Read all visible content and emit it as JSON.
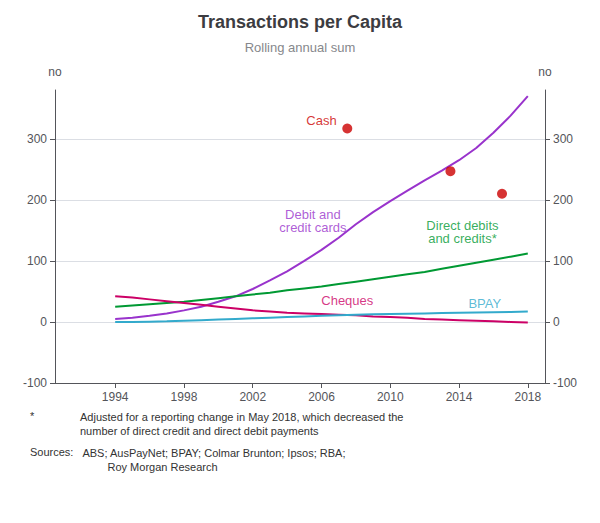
{
  "chart_data": {
    "type": "line",
    "title": "Transactions per Capita",
    "subtitle": "Rolling annual sum",
    "ylabel": "no",
    "y2label": "no",
    "xlim": [
      1990.5,
      2019.0
    ],
    "xticks": [
      1994,
      1998,
      2002,
      2006,
      2010,
      2014,
      2018
    ],
    "ylim": [
      -100,
      380
    ],
    "yticks": [
      -100,
      0,
      100,
      200,
      300
    ],
    "y2lim": [
      -100,
      380
    ],
    "y2ticks": [
      -100,
      0,
      100,
      200,
      300
    ],
    "grid": true,
    "series": [
      {
        "name": "Debit and\ncredit cards",
        "type": "line",
        "color": "#9933CC",
        "x": [
          1994,
          1995,
          1996,
          1997,
          1998,
          1999,
          2000,
          2001,
          2002,
          2003,
          2004,
          2005,
          2006,
          2007,
          2008,
          2009,
          2010,
          2011,
          2012,
          2013,
          2014,
          2015,
          2016,
          2017,
          2018
        ],
        "values": [
          5,
          7,
          10,
          14,
          19,
          25,
          33,
          42,
          54,
          68,
          83,
          100,
          118,
          138,
          160,
          180,
          198,
          215,
          232,
          248,
          265,
          285,
          310,
          338,
          370
        ]
      },
      {
        "name": "Direct debits\nand credits*",
        "type": "line",
        "color": "#009933",
        "x": [
          1994,
          1995,
          1996,
          1997,
          1998,
          1999,
          2000,
          2001,
          2002,
          2003,
          2004,
          2005,
          2006,
          2007,
          2008,
          2009,
          2010,
          2011,
          2012,
          2013,
          2014,
          2015,
          2016,
          2017,
          2018
        ],
        "values": [
          25,
          27,
          29,
          31,
          33,
          36,
          39,
          42,
          45,
          48,
          52,
          55,
          58,
          62,
          66,
          70,
          74,
          78,
          82,
          87,
          92,
          97,
          102,
          107,
          112
        ]
      },
      {
        "name": "Cheques",
        "type": "line",
        "color": "#CC0066",
        "x": [
          1994,
          1995,
          1996,
          1997,
          1998,
          1999,
          2000,
          2001,
          2002,
          2003,
          2004,
          2005,
          2006,
          2007,
          2008,
          2009,
          2010,
          2011,
          2012,
          2013,
          2014,
          2015,
          2016,
          2017,
          2018
        ],
        "values": [
          42,
          40,
          37,
          34,
          31,
          28,
          25,
          22,
          19,
          17,
          15,
          14,
          13,
          12,
          11,
          9,
          8,
          7,
          5,
          4,
          3,
          2,
          1,
          0,
          -1
        ]
      },
      {
        "name": "BPAY",
        "type": "line",
        "color": "#33AACC",
        "x": [
          1994,
          1995,
          1996,
          1997,
          1998,
          1999,
          2000,
          2001,
          2002,
          2003,
          2004,
          2005,
          2006,
          2007,
          2008,
          2009,
          2010,
          2011,
          2012,
          2013,
          2014,
          2015,
          2016,
          2017,
          2018
        ],
        "values": [
          0,
          0,
          0.5,
          1,
          2,
          3,
          4,
          5,
          6,
          7,
          8,
          9,
          10,
          11,
          12,
          12.5,
          13,
          13.5,
          14,
          14.5,
          15,
          15.5,
          16,
          16.5,
          17
        ]
      },
      {
        "name": "Cash",
        "type": "scatter",
        "color": "#CC0000",
        "x": [
          2007.5,
          2013.5,
          2016.5
        ],
        "values": [
          317,
          247,
          210
        ]
      }
    ],
    "annotations": [
      {
        "text": "Debit and\ncredit cards",
        "x": 2005.5,
        "y": 165,
        "color": "#9933CC"
      },
      {
        "text": "Direct debits\nand credits*",
        "x": 2014.2,
        "y": 148,
        "color": "#009933"
      },
      {
        "text": "Cheques",
        "x": 2007.5,
        "y": 35,
        "color": "#CC0066"
      },
      {
        "text": "BPAY",
        "x": 2015.5,
        "y": 30,
        "color": "#33AACC"
      },
      {
        "text": "Cash",
        "x": 2006.0,
        "y": 330,
        "color": "#CC0000"
      }
    ],
    "notes": [
      {
        "label": "*",
        "text": "Adjusted for a reporting change in May 2018, which decreased the\nnumber of direct credit and direct debit payments"
      },
      {
        "label": "Sources:",
        "text": " ABS; AusPayNet; BPAY; Colmar Brunton; Ipsos; RBA;\n         Roy Morgan Research"
      }
    ]
  }
}
